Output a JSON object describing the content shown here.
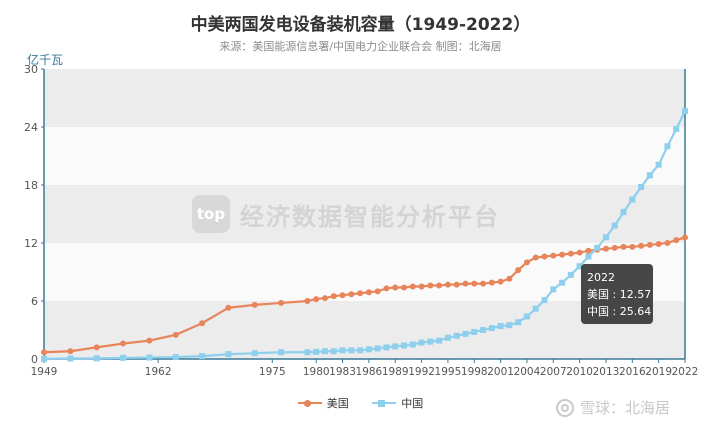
{
  "chart_data": {
    "type": "line",
    "title": "中美两国发电设备装机容量（1949-2022）",
    "subtitle": "来源：美国能源信息署/中国电力企业联合会 制图：北海居",
    "ylabel": "亿千瓦",
    "ylim": [
      0,
      30
    ],
    "y_ticks": [
      0,
      6,
      12,
      18,
      24,
      30
    ],
    "x_ticks": [
      "1949",
      "1962",
      "1975",
      "1980",
      "1983",
      "1986",
      "1989",
      "1992",
      "1995",
      "1998",
      "2001",
      "2004",
      "2007",
      "2010",
      "2013",
      "2016",
      "2019",
      "2022"
    ],
    "x": [
      "1949",
      "1952",
      "1955",
      "1958",
      "1961",
      "1964",
      "1967",
      "1970",
      "1973",
      "1976",
      "1979",
      "1980",
      "1981",
      "1982",
      "1983",
      "1984",
      "1985",
      "1986",
      "1987",
      "1988",
      "1989",
      "1990",
      "1991",
      "1992",
      "1993",
      "1994",
      "1995",
      "1996",
      "1997",
      "1998",
      "1999",
      "2000",
      "2001",
      "2002",
      "2003",
      "2004",
      "2005",
      "2006",
      "2007",
      "2008",
      "2009",
      "2010",
      "2011",
      "2012",
      "2013",
      "2014",
      "2015",
      "2016",
      "2017",
      "2018",
      "2019",
      "2020",
      "2021",
      "2022"
    ],
    "grid": "horizontal bands",
    "legend_position": "bottom",
    "series": [
      {
        "name": "美国",
        "color": "#e8845a",
        "marker": "circle",
        "values": [
          0.7,
          0.8,
          1.2,
          1.6,
          1.9,
          2.5,
          3.7,
          5.3,
          5.6,
          5.8,
          6.0,
          6.2,
          6.3,
          6.5,
          6.6,
          6.7,
          6.8,
          6.9,
          7.0,
          7.3,
          7.4,
          7.4,
          7.5,
          7.5,
          7.6,
          7.6,
          7.7,
          7.7,
          7.8,
          7.8,
          7.8,
          7.9,
          8.0,
          8.3,
          9.2,
          10.0,
          10.5,
          10.6,
          10.7,
          10.8,
          10.9,
          11.0,
          11.2,
          11.3,
          11.4,
          11.5,
          11.6,
          11.6,
          11.7,
          11.8,
          11.9,
          12.0,
          12.3,
          12.57
        ]
      },
      {
        "name": "中国",
        "color": "#8ecfee",
        "marker": "square",
        "values": [
          0.02,
          0.05,
          0.07,
          0.12,
          0.15,
          0.2,
          0.3,
          0.5,
          0.6,
          0.7,
          0.7,
          0.74,
          0.8,
          0.8,
          0.9,
          0.9,
          0.9,
          1.0,
          1.1,
          1.2,
          1.3,
          1.4,
          1.5,
          1.7,
          1.8,
          1.9,
          2.2,
          2.4,
          2.6,
          2.8,
          3.0,
          3.2,
          3.4,
          3.5,
          3.8,
          4.4,
          5.2,
          6.1,
          7.2,
          7.9,
          8.7,
          9.6,
          10.6,
          11.5,
          12.6,
          13.8,
          15.2,
          16.5,
          17.8,
          19.0,
          20.1,
          22.0,
          23.8,
          25.64
        ]
      }
    ],
    "tooltip": {
      "year": "2022",
      "lines": [
        {
          "name": "美国",
          "value": "12.57"
        },
        {
          "name": "中国",
          "value": "25.64"
        }
      ]
    }
  },
  "watermarks": {
    "brand_badge": "top",
    "brand_text": "经济数据智能分析平台",
    "xueqiu": "雪球：北海居"
  }
}
